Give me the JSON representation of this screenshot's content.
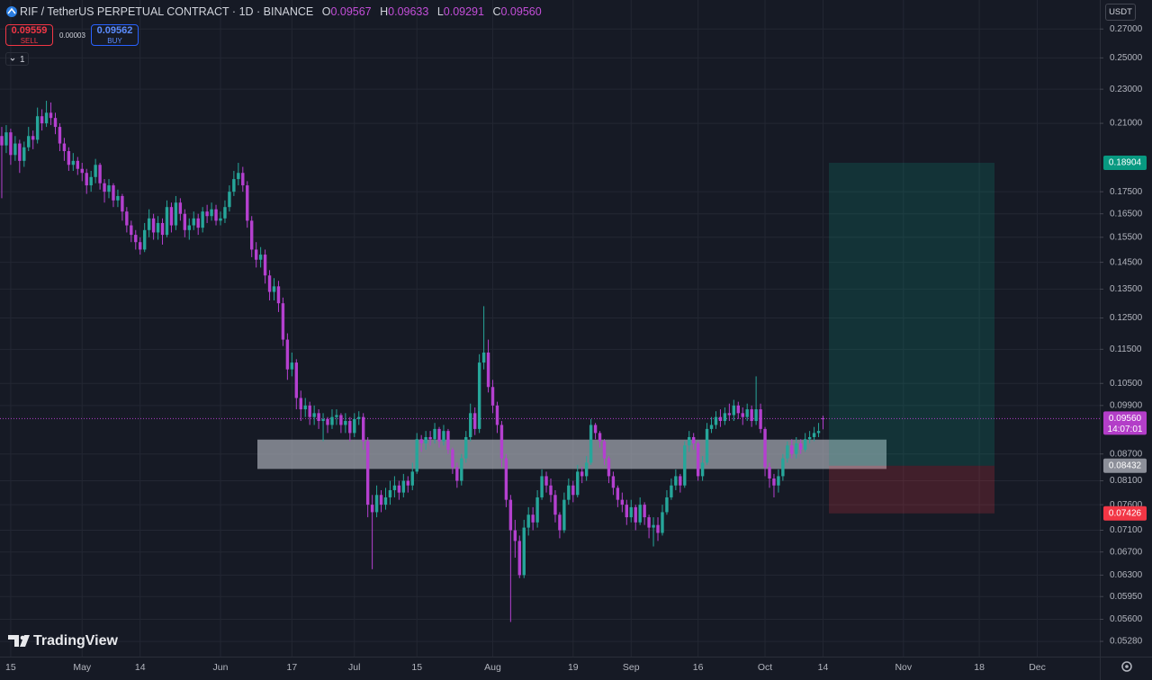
{
  "header": {
    "symbol": "RIF / TetherUS PERPETUAL CONTRACT · 1D · BINANCE",
    "ohlc": [
      {
        "key": "O",
        "value": "0.09567"
      },
      {
        "key": "H",
        "value": "0.09633"
      },
      {
        "key": "L",
        "value": "0.09291"
      },
      {
        "key": "C",
        "value": "0.09560"
      }
    ]
  },
  "trade": {
    "sell_price": "0.09559",
    "sell_label": "SELL",
    "spread": "0.00003",
    "buy_price": "0.09562",
    "buy_label": "BUY"
  },
  "indicators_count": "1",
  "currency": "USDT",
  "brand": "TradingView",
  "chart_data": {
    "type": "candlestick",
    "log_scale": true,
    "grid": true,
    "up_color": "#26a69a",
    "down_color": "#b440cf",
    "ylim": [
      0.0507,
      0.2917
    ],
    "yticks": [
      {
        "value": 0.27,
        "label": "0.27000"
      },
      {
        "value": 0.25,
        "label": "0.25000"
      },
      {
        "value": 0.23,
        "label": "0.23000"
      },
      {
        "value": 0.21,
        "label": "0.21000"
      },
      {
        "value": 0.175,
        "label": "0.17500"
      },
      {
        "value": 0.165,
        "label": "0.16500"
      },
      {
        "value": 0.155,
        "label": "0.15500"
      },
      {
        "value": 0.145,
        "label": "0.14500"
      },
      {
        "value": 0.135,
        "label": "0.13500"
      },
      {
        "value": 0.125,
        "label": "0.12500"
      },
      {
        "value": 0.115,
        "label": "0.11500"
      },
      {
        "value": 0.105,
        "label": "0.10500"
      },
      {
        "value": 0.099,
        "label": "0.09900"
      },
      {
        "value": 0.087,
        "label": "0.08700"
      },
      {
        "value": 0.081,
        "label": "0.08100"
      },
      {
        "value": 0.076,
        "label": "0.07600"
      },
      {
        "value": 0.071,
        "label": "0.07100"
      },
      {
        "value": 0.067,
        "label": "0.06700"
      },
      {
        "value": 0.063,
        "label": "0.06300"
      },
      {
        "value": 0.0595,
        "label": "0.05950"
      },
      {
        "value": 0.056,
        "label": "0.05600"
      },
      {
        "value": 0.0528,
        "label": "0.05280"
      }
    ],
    "xlim": [
      -0.4,
      246
    ],
    "xticks": [
      {
        "value": 2,
        "label": "15"
      },
      {
        "value": 18,
        "label": "May"
      },
      {
        "value": 31,
        "label": "14"
      },
      {
        "value": 49,
        "label": "Jun"
      },
      {
        "value": 65,
        "label": "17"
      },
      {
        "value": 79,
        "label": "Jul"
      },
      {
        "value": 93,
        "label": "15"
      },
      {
        "value": 110,
        "label": "Aug"
      },
      {
        "value": 128,
        "label": "19"
      },
      {
        "value": 141,
        "label": "Sep"
      },
      {
        "value": 156,
        "label": "16"
      },
      {
        "value": 171,
        "label": "Oct"
      },
      {
        "value": 184,
        "label": "14"
      },
      {
        "value": 202,
        "label": "Nov"
      },
      {
        "value": 219,
        "label": "18"
      },
      {
        "value": 232,
        "label": "Dec"
      }
    ],
    "open": [
      0.203,
      0.198,
      0.205,
      0.193,
      0.199,
      0.19,
      0.197,
      0.203,
      0.201,
      0.214,
      0.21,
      0.216,
      0.213,
      0.208,
      0.199,
      0.195,
      0.188,
      0.19,
      0.186,
      0.184,
      0.178,
      0.182,
      0.188,
      0.179,
      0.175,
      0.178,
      0.171,
      0.173,
      0.166,
      0.16,
      0.156,
      0.153,
      0.15,
      0.158,
      0.163,
      0.157,
      0.161,
      0.156,
      0.168,
      0.16,
      0.17,
      0.165,
      0.158,
      0.16,
      0.163,
      0.159,
      0.166,
      0.164,
      0.167,
      0.162,
      0.163,
      0.168,
      0.175,
      0.181,
      0.184,
      0.178,
      0.162,
      0.15,
      0.146,
      0.148,
      0.14,
      0.134,
      0.136,
      0.13,
      0.118,
      0.109,
      0.111,
      0.101,
      0.098,
      0.099,
      0.096,
      0.097,
      0.095,
      0.0955,
      0.094,
      0.096,
      0.0965,
      0.094,
      0.095,
      0.092,
      0.0955,
      0.096,
      0.09,
      0.076,
      0.0745,
      0.078,
      0.076,
      0.0775,
      0.079,
      0.08,
      0.0785,
      0.081,
      0.08,
      0.083,
      0.0905,
      0.0895,
      0.091,
      0.0905,
      0.093,
      0.09,
      0.0925,
      0.088,
      0.084,
      0.081,
      0.086,
      0.091,
      0.097,
      0.093,
      0.111,
      0.114,
      0.104,
      0.099,
      0.094,
      0.086,
      0.077,
      0.071,
      0.069,
      0.063,
      0.0715,
      0.074,
      0.0725,
      0.0775,
      0.082,
      0.08,
      0.078,
      0.074,
      0.071,
      0.077,
      0.08,
      0.078,
      0.083,
      0.082,
      0.085,
      0.094,
      0.092,
      0.09,
      0.086,
      0.082,
      0.0795,
      0.077,
      0.076,
      0.0735,
      0.0755,
      0.0725,
      0.076,
      0.0735,
      0.0715,
      0.072,
      0.0705,
      0.0745,
      0.0775,
      0.08,
      0.082,
      0.08,
      0.089,
      0.091,
      0.0895,
      0.082,
      0.085,
      0.093,
      0.094,
      0.096,
      0.095,
      0.097,
      0.0965,
      0.099,
      0.097,
      0.096,
      0.098,
      0.095,
      0.098,
      0.093,
      0.084,
      0.0815,
      0.08,
      0.082,
      0.086,
      0.089,
      0.087,
      0.0895,
      0.088,
      0.0905,
      0.091,
      0.092,
      0.09567
    ],
    "high": [
      0.208,
      0.209,
      0.207,
      0.203,
      0.201,
      0.2,
      0.208,
      0.206,
      0.219,
      0.218,
      0.223,
      0.222,
      0.216,
      0.21,
      0.202,
      0.197,
      0.194,
      0.192,
      0.189,
      0.186,
      0.185,
      0.191,
      0.189,
      0.181,
      0.181,
      0.179,
      0.176,
      0.174,
      0.168,
      0.162,
      0.158,
      0.155,
      0.161,
      0.167,
      0.165,
      0.164,
      0.163,
      0.171,
      0.17,
      0.173,
      0.172,
      0.167,
      0.163,
      0.166,
      0.165,
      0.168,
      0.169,
      0.17,
      0.169,
      0.166,
      0.171,
      0.178,
      0.185,
      0.189,
      0.187,
      0.18,
      0.164,
      0.153,
      0.151,
      0.15,
      0.142,
      0.139,
      0.138,
      0.132,
      0.12,
      0.114,
      0.112,
      0.103,
      0.101,
      0.1,
      0.099,
      0.098,
      0.097,
      0.096,
      0.098,
      0.098,
      0.097,
      0.097,
      0.096,
      0.097,
      0.0975,
      0.097,
      0.091,
      0.078,
      0.08,
      0.079,
      0.0795,
      0.081,
      0.082,
      0.081,
      0.0825,
      0.082,
      0.085,
      0.092,
      0.0915,
      0.0925,
      0.0925,
      0.0945,
      0.0935,
      0.094,
      0.093,
      0.0885,
      0.085,
      0.087,
      0.0925,
      0.0995,
      0.0985,
      0.1135,
      0.129,
      0.118,
      0.106,
      0.1,
      0.095,
      0.087,
      0.078,
      0.073,
      0.07,
      0.073,
      0.0755,
      0.0755,
      0.079,
      0.0835,
      0.083,
      0.0815,
      0.079,
      0.0745,
      0.0785,
      0.0815,
      0.081,
      0.0845,
      0.084,
      0.0865,
      0.0955,
      0.0945,
      0.0925,
      0.0905,
      0.0865,
      0.083,
      0.08,
      0.0785,
      0.077,
      0.077,
      0.076,
      0.0775,
      0.0765,
      0.074,
      0.0735,
      0.0735,
      0.076,
      0.079,
      0.0815,
      0.0835,
      0.0825,
      0.09,
      0.0925,
      0.092,
      0.09,
      0.0865,
      0.0945,
      0.096,
      0.0975,
      0.098,
      0.0985,
      0.0995,
      0.1005,
      0.1,
      0.0985,
      0.0995,
      0.099,
      0.107,
      0.0995,
      0.0935,
      0.085,
      0.0825,
      0.0835,
      0.087,
      0.09,
      0.0905,
      0.091,
      0.0905,
      0.092,
      0.0925,
      0.0935,
      0.0945,
      0.09633
    ],
    "low": [
      0.172,
      0.194,
      0.188,
      0.19,
      0.184,
      0.187,
      0.195,
      0.196,
      0.199,
      0.206,
      0.208,
      0.209,
      0.204,
      0.195,
      0.19,
      0.185,
      0.185,
      0.183,
      0.18,
      0.174,
      0.175,
      0.179,
      0.176,
      0.17,
      0.172,
      0.168,
      0.168,
      0.162,
      0.157,
      0.153,
      0.15,
      0.148,
      0.149,
      0.155,
      0.154,
      0.154,
      0.152,
      0.155,
      0.157,
      0.158,
      0.162,
      0.155,
      0.154,
      0.158,
      0.156,
      0.157,
      0.161,
      0.162,
      0.16,
      0.16,
      0.161,
      0.166,
      0.173,
      0.178,
      0.175,
      0.159,
      0.147,
      0.143,
      0.143,
      0.137,
      0.131,
      0.131,
      0.127,
      0.116,
      0.106,
      0.107,
      0.098,
      0.095,
      0.096,
      0.094,
      0.094,
      0.093,
      0.09,
      0.092,
      0.093,
      0.094,
      0.092,
      0.092,
      0.09,
      0.091,
      0.094,
      0.088,
      0.0735,
      0.064,
      0.0735,
      0.0745,
      0.075,
      0.076,
      0.0775,
      0.077,
      0.0775,
      0.0785,
      0.079,
      0.0825,
      0.0875,
      0.088,
      0.089,
      0.0895,
      0.0885,
      0.089,
      0.087,
      0.0825,
      0.0795,
      0.08,
      0.085,
      0.09,
      0.0915,
      0.092,
      0.109,
      0.1025,
      0.097,
      0.092,
      0.084,
      0.0755,
      0.0556,
      0.066,
      0.0625,
      0.0625,
      0.07,
      0.071,
      0.0715,
      0.077,
      0.0785,
      0.0765,
      0.0725,
      0.0695,
      0.0705,
      0.076,
      0.0765,
      0.0775,
      0.0805,
      0.081,
      0.0845,
      0.0905,
      0.0885,
      0.0845,
      0.0805,
      0.078,
      0.0755,
      0.0745,
      0.072,
      0.0725,
      0.071,
      0.072,
      0.072,
      0.0695,
      0.068,
      0.069,
      0.07,
      0.074,
      0.077,
      0.079,
      0.0785,
      0.0795,
      0.0875,
      0.088,
      0.081,
      0.081,
      0.0845,
      0.092,
      0.093,
      0.0935,
      0.094,
      0.095,
      0.095,
      0.0955,
      0.094,
      0.095,
      0.0935,
      0.094,
      0.092,
      0.082,
      0.0795,
      0.0775,
      0.0785,
      0.081,
      0.085,
      0.086,
      0.086,
      0.087,
      0.0875,
      0.0895,
      0.09,
      0.091,
      0.09291
    ],
    "close": [
      0.198,
      0.205,
      0.193,
      0.199,
      0.19,
      0.197,
      0.203,
      0.201,
      0.214,
      0.21,
      0.216,
      0.213,
      0.208,
      0.199,
      0.195,
      0.188,
      0.19,
      0.186,
      0.184,
      0.178,
      0.182,
      0.188,
      0.179,
      0.175,
      0.178,
      0.171,
      0.173,
      0.166,
      0.16,
      0.156,
      0.153,
      0.15,
      0.158,
      0.163,
      0.157,
      0.161,
      0.156,
      0.168,
      0.16,
      0.17,
      0.165,
      0.158,
      0.16,
      0.163,
      0.159,
      0.166,
      0.164,
      0.167,
      0.162,
      0.163,
      0.168,
      0.175,
      0.181,
      0.184,
      0.178,
      0.162,
      0.15,
      0.146,
      0.148,
      0.14,
      0.134,
      0.136,
      0.13,
      0.118,
      0.109,
      0.111,
      0.101,
      0.098,
      0.099,
      0.096,
      0.097,
      0.095,
      0.0955,
      0.094,
      0.096,
      0.0965,
      0.094,
      0.095,
      0.092,
      0.0955,
      0.096,
      0.09,
      0.076,
      0.0745,
      0.078,
      0.076,
      0.0775,
      0.079,
      0.08,
      0.0785,
      0.081,
      0.08,
      0.083,
      0.0905,
      0.0895,
      0.091,
      0.0905,
      0.093,
      0.09,
      0.0925,
      0.088,
      0.084,
      0.081,
      0.086,
      0.091,
      0.097,
      0.093,
      0.111,
      0.114,
      0.104,
      0.099,
      0.094,
      0.086,
      0.077,
      0.071,
      0.069,
      0.063,
      0.0715,
      0.074,
      0.0725,
      0.0775,
      0.082,
      0.08,
      0.078,
      0.074,
      0.071,
      0.077,
      0.08,
      0.078,
      0.083,
      0.082,
      0.085,
      0.094,
      0.092,
      0.09,
      0.086,
      0.082,
      0.0795,
      0.077,
      0.076,
      0.0735,
      0.0755,
      0.0725,
      0.076,
      0.0735,
      0.0715,
      0.072,
      0.0705,
      0.0745,
      0.0775,
      0.08,
      0.082,
      0.08,
      0.089,
      0.091,
      0.0895,
      0.082,
      0.085,
      0.093,
      0.094,
      0.096,
      0.095,
      0.097,
      0.0965,
      0.099,
      0.097,
      0.096,
      0.098,
      0.095,
      0.098,
      0.093,
      0.084,
      0.0815,
      0.08,
      0.082,
      0.086,
      0.089,
      0.087,
      0.0895,
      0.088,
      0.0905,
      0.091,
      0.092,
      0.0925,
      0.0956
    ],
    "zone": {
      "top": 0.0904,
      "bottom": 0.0836,
      "color": "#b2b5be"
    },
    "position": {
      "target": {
        "value": 0.18904,
        "label": "0.18904",
        "color": "#089981"
      },
      "entry": {
        "value": 0.08432,
        "label": "0.08432",
        "color": "#8c8f99"
      },
      "stop": {
        "value": 0.07426,
        "label": "0.07426",
        "color": "#f23645"
      }
    },
    "last_price": {
      "value": 0.0956,
      "label": "0.09560",
      "countdown": "14:07:01",
      "color": "#b33ec8"
    }
  }
}
